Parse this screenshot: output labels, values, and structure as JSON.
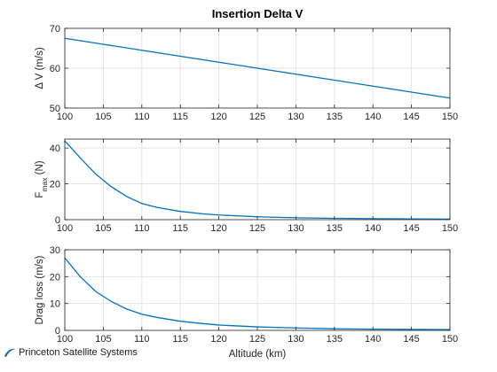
{
  "figure": {
    "title": "Insertion Delta V",
    "xlabel": "Altitude (km)",
    "series_color": "#0072BD"
  },
  "logo": {
    "text": "Princeton Satellite Systems",
    "color": "#1f5fa8"
  },
  "chart_data": [
    {
      "type": "line",
      "title": "Insertion Delta V",
      "xlabel": "",
      "ylabel": "Δ V (m/s)",
      "xlim": [
        100,
        150
      ],
      "ylim": [
        50,
        70
      ],
      "xticks": [
        "100",
        "105",
        "110",
        "115",
        "120",
        "125",
        "130",
        "135",
        "140",
        "145",
        "150"
      ],
      "yticks": [
        "50",
        "60",
        "70"
      ],
      "grid": true,
      "x": [
        100,
        105,
        110,
        115,
        120,
        125,
        130,
        135,
        140,
        145,
        150
      ],
      "y": [
        67.5,
        66.0,
        64.5,
        63.0,
        61.5,
        60.0,
        58.5,
        57.0,
        55.5,
        54.0,
        52.5
      ]
    },
    {
      "type": "line",
      "xlabel": "",
      "ylabel": "F",
      "ylabel_sub": "max",
      "ylabel_unit": "(N)",
      "xlim": [
        100,
        150
      ],
      "ylim": [
        0,
        45
      ],
      "xticks": [
        "100",
        "105",
        "110",
        "115",
        "120",
        "125",
        "130",
        "135",
        "140",
        "145",
        "150"
      ],
      "yticks": [
        "0",
        "20",
        "40"
      ],
      "grid": true,
      "x": [
        100,
        102,
        104,
        106,
        108,
        110,
        112,
        115,
        118,
        120,
        125,
        130,
        135,
        140,
        145,
        150
      ],
      "y": [
        44.0,
        34.5,
        25.5,
        18.5,
        13.0,
        9.0,
        6.8,
        4.6,
        3.2,
        2.6,
        1.6,
        1.05,
        0.75,
        0.55,
        0.42,
        0.32
      ]
    },
    {
      "type": "line",
      "xlabel": "Altitude (km)",
      "ylabel": "Drag loss (m/s)",
      "xlim": [
        100,
        150
      ],
      "ylim": [
        0,
        30
      ],
      "xticks": [
        "100",
        "105",
        "110",
        "115",
        "120",
        "125",
        "130",
        "135",
        "140",
        "145",
        "150"
      ],
      "yticks": [
        "0",
        "10",
        "20",
        "30"
      ],
      "grid": true,
      "x": [
        100,
        102,
        104,
        106,
        108,
        110,
        112,
        115,
        118,
        120,
        125,
        130,
        135,
        140,
        145,
        150
      ],
      "y": [
        27.0,
        20.0,
        14.5,
        10.8,
        8.0,
        6.0,
        4.8,
        3.4,
        2.5,
        2.0,
        1.3,
        0.9,
        0.6,
        0.45,
        0.35,
        0.28
      ]
    }
  ]
}
